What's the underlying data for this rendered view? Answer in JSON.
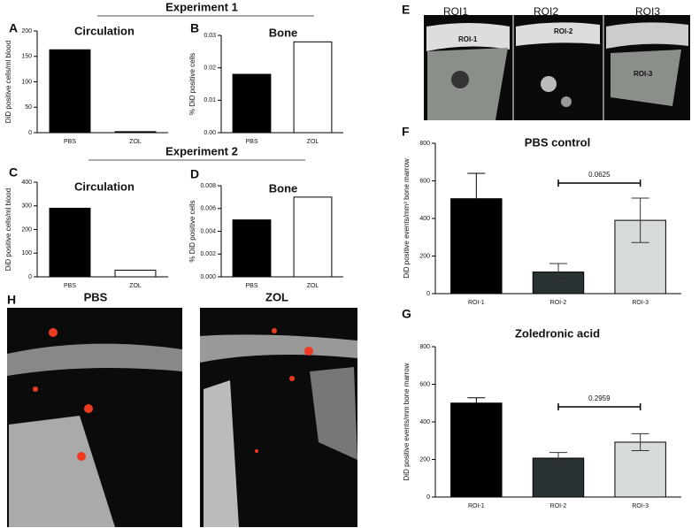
{
  "labels": {
    "experiment_1": "Experiment 1",
    "experiment_2": "Experiment 2",
    "panels": [
      "A",
      "B",
      "C",
      "D",
      "E",
      "F",
      "G",
      "H"
    ],
    "roi_titles": [
      "ROI1",
      "ROI2",
      "ROI3"
    ],
    "roi_tags": [
      "ROI-1",
      "ROI-2",
      "ROI-3"
    ],
    "h_titles": [
      "PBS",
      "ZOL"
    ]
  },
  "chart_data": [
    {
      "type": "bar",
      "title": "Circulation",
      "ylabel": "DiD positive cells/ml blood",
      "categories": [
        "PBS",
        "ZOL"
      ],
      "values": [
        163,
        2
      ],
      "colors": [
        "#000000",
        "#000000"
      ],
      "ylim": [
        0,
        200
      ],
      "yticks": [
        0,
        50,
        100,
        150,
        200
      ]
    },
    {
      "type": "bar",
      "title": "Bone",
      "ylabel": "% DiD positive cells",
      "categories": [
        "PBS",
        "ZOL"
      ],
      "values": [
        0.018,
        0.028
      ],
      "colors": [
        "#000000",
        "#ffffff"
      ],
      "ylim": [
        0,
        0.03
      ],
      "yticks": [
        {
          "value": 0,
          "label": "0.00"
        },
        0.01,
        0.02,
        0.03
      ]
    },
    {
      "type": "bar",
      "title": "Circulation",
      "ylabel": "DiD positive cells/ml blood",
      "categories": [
        "PBS",
        "ZOL"
      ],
      "values": [
        290,
        28
      ],
      "colors": [
        "#000000",
        "#ffffff"
      ],
      "ylim": [
        0,
        400
      ],
      "yticks": [
        0,
        100,
        200,
        300,
        400
      ]
    },
    {
      "type": "bar",
      "title": "Bone",
      "ylabel": "% DiD positive cells",
      "categories": [
        "PBS",
        "ZOL"
      ],
      "values": [
        0.005,
        0.007
      ],
      "colors": [
        "#000000",
        "#ffffff"
      ],
      "ylim": [
        0,
        0.008
      ],
      "yticks": [
        {
          "value": 0,
          "label": "0.000"
        },
        0.002,
        0.004,
        0.006,
        0.008
      ]
    },
    {
      "type": "bar",
      "title": "PBS control",
      "ylabel": "DiD positive events/mm³ bone marrow",
      "categories": [
        "ROI-1",
        "ROI-2",
        "ROI-3"
      ],
      "values": [
        505,
        115,
        390
      ],
      "errors": [
        135,
        45,
        118
      ],
      "colors": [
        "#000000",
        "#2a3133",
        "#d8dcd8"
      ],
      "ylim": [
        0,
        800
      ],
      "yticks": [
        0,
        200,
        400,
        600,
        800
      ],
      "annotation": "0.0625"
    },
    {
      "type": "bar",
      "title": "Zoledronic acid",
      "ylabel": "DiD positive events/mm  bone marrow",
      "categories": [
        "ROI-1",
        "ROI-2",
        "ROI-3"
      ],
      "values": [
        500,
        207,
        292
      ],
      "errors": [
        28,
        30,
        45
      ],
      "colors": [
        "#000000",
        "#2a3133",
        "#d8dcd8"
      ],
      "ylim": [
        0,
        800
      ],
      "yticks": [
        0,
        200,
        400,
        600,
        800
      ],
      "annotation": "0.2959"
    }
  ]
}
